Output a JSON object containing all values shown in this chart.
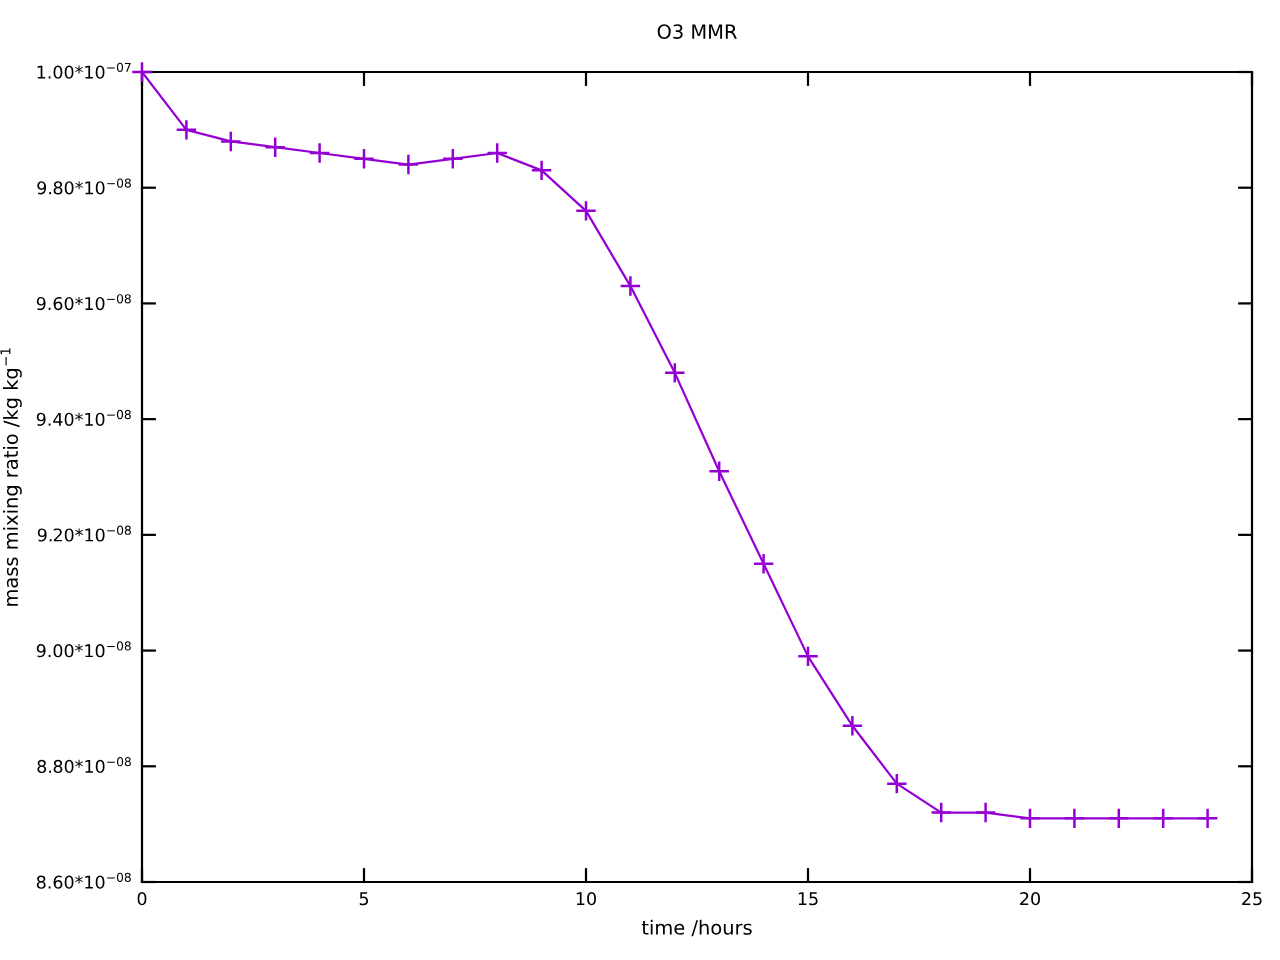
{
  "chart_data": {
    "type": "line",
    "title": "O3 MMR",
    "xlabel": "time /hours",
    "ylabel": "mass mixing ratio /kg kg$^{−1}$",
    "x": [
      0,
      1,
      2,
      3,
      4,
      5,
      6,
      7,
      8,
      9,
      10,
      11,
      12,
      13,
      14,
      15,
      16,
      17,
      18,
      19,
      20,
      21,
      22,
      23,
      24
    ],
    "series": [
      {
        "color": "#9400d3",
        "values": [
          1e-07,
          9.9e-08,
          9.88e-08,
          9.87e-08,
          9.86e-08,
          9.85e-08,
          9.84e-08,
          9.85e-08,
          9.86e-08,
          9.83e-08,
          9.76e-08,
          9.63e-08,
          9.48e-08,
          9.31e-08,
          9.15e-08,
          8.99e-08,
          8.87e-08,
          8.77e-08,
          8.72e-08,
          8.72e-08,
          8.71e-08,
          8.71e-08,
          8.71e-08,
          8.71e-08,
          8.71e-08
        ]
      }
    ],
    "xlim": [
      0,
      25
    ],
    "xticks": [
      0,
      5,
      10,
      15,
      20,
      25
    ],
    "ylim": [
      8.6e-08,
      1e-07
    ],
    "yticks": [
      {
        "value": 8.6e-08,
        "label": "8.60*10$^{−08}$"
      },
      {
        "value": 8.8e-08,
        "label": "8.80*10$^{−08}$"
      },
      {
        "value": 9e-08,
        "label": "9.00*10$^{−08}$"
      },
      {
        "value": 9.2e-08,
        "label": "9.20*10$^{−08}$"
      },
      {
        "value": 9.4e-08,
        "label": "9.40*10$^{−08}$"
      },
      {
        "value": 9.6e-08,
        "label": "9.60*10$^{−08}$"
      },
      {
        "value": 9.8e-08,
        "label": "9.80*10$^{−08}$"
      },
      {
        "value": 1e-07,
        "label": "1.00*10$^{−07}$"
      }
    ],
    "grid": false,
    "marker": "cross",
    "line_style": "solid"
  }
}
